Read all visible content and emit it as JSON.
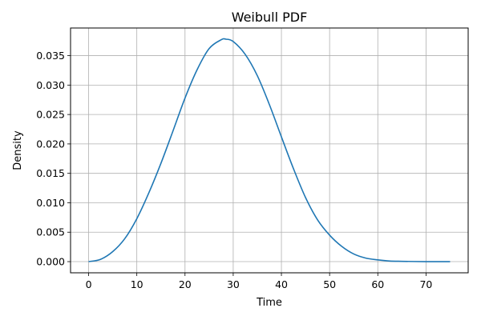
{
  "chart_data": {
    "type": "line",
    "title": "Weibull PDF",
    "xlabel": "Time",
    "ylabel": "Density",
    "xlim": [
      -3.75,
      78.75
    ],
    "ylim": [
      -0.0019,
      0.0397
    ],
    "xticks": [
      0,
      10,
      20,
      30,
      40,
      50,
      60,
      70
    ],
    "xtick_labels": [
      "0",
      "10",
      "20",
      "30",
      "40",
      "50",
      "60",
      "70"
    ],
    "yticks": [
      0.0,
      0.005,
      0.01,
      0.015,
      0.02,
      0.025,
      0.03,
      0.035
    ],
    "ytick_labels": [
      "0.000",
      "0.005",
      "0.010",
      "0.015",
      "0.020",
      "0.025",
      "0.030",
      "0.035"
    ],
    "grid": true,
    "series": [
      {
        "color": "#1f77b4",
        "x": [
          0,
          2.5,
          5,
          7.5,
          10,
          12.5,
          15,
          17.5,
          20,
          22.5,
          25,
          27.5,
          28.5,
          30,
          32.5,
          35,
          37.5,
          40,
          42.5,
          45,
          47.5,
          50,
          52.5,
          55,
          57.5,
          60,
          62.5,
          65,
          67.5,
          70,
          72.5,
          75
        ],
        "y": [
          0.0,
          0.0004,
          0.0017,
          0.0039,
          0.0073,
          0.0117,
          0.0167,
          0.0222,
          0.0278,
          0.0326,
          0.0362,
          0.0377,
          0.0378,
          0.0374,
          0.0352,
          0.0316,
          0.0267,
          0.0212,
          0.0158,
          0.0109,
          0.0071,
          0.0045,
          0.0026,
          0.0013,
          0.0006,
          0.0003,
          0.0001,
          5e-05,
          2e-05,
          0.0,
          0.0,
          0.0
        ]
      }
    ]
  }
}
